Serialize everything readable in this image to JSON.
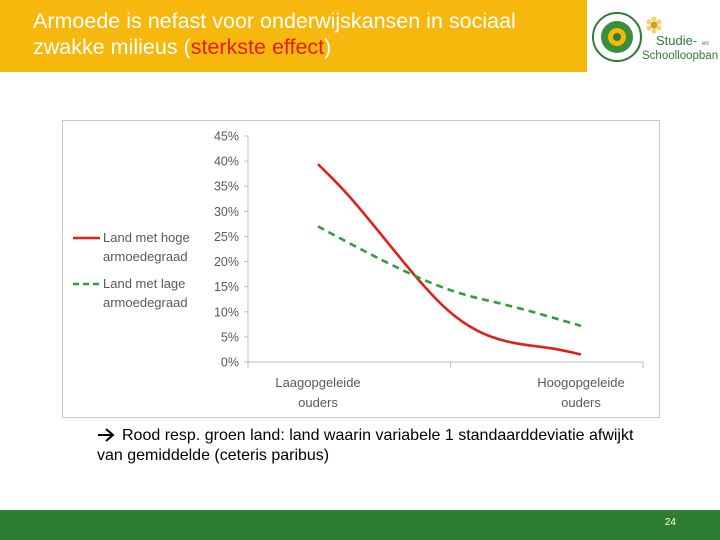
{
  "slide": {
    "title_part1": "Armoede is nefast voor onderwijskansen in sociaal zwakke milieus (",
    "title_highlight": "sterkste effect",
    "title_part2": ")",
    "logo_text_line1": "Studie-",
    "logo_text_small": "en",
    "logo_text_line2": "Schoolloopbanen",
    "note": "Rood resp. groen land: land waarin variabele 1 standaarddeviatie afwijkt van gemiddelde (ceteris paribus)",
    "page_number": "24"
  },
  "colors": {
    "title_bar": "#f6b80c",
    "footer": "#2e7d32",
    "red_series": "#e0201b",
    "green_series": "#2e9e3e",
    "highlight": "#e0201b"
  },
  "chart_data": {
    "type": "line",
    "categories": [
      "Laagopgeleide ouders",
      "Hoogopgeleide ouders"
    ],
    "category_lines": [
      [
        "Laagopgeleide",
        "ouders"
      ],
      [
        "Hoogopgeleide",
        "ouders"
      ]
    ],
    "ylim": [
      0,
      45
    ],
    "yticks": [
      "0%",
      "5%",
      "10%",
      "15%",
      "20%",
      "25%",
      "30%",
      "35%",
      "40%",
      "45%"
    ],
    "legend_position": "left",
    "grid": false,
    "series": [
      {
        "name": "Land met hoge armoedegraad",
        "legend_lines": [
          "Land met hoge",
          "armoedegraad"
        ],
        "style": "solid",
        "color": "#e0201b",
        "points": [
          {
            "x": 0.0,
            "y": 39.4
          },
          {
            "x": 0.1,
            "y": 34.2
          },
          {
            "x": 0.2,
            "y": 28.0
          },
          {
            "x": 0.3,
            "y": 21.5
          },
          {
            "x": 0.4,
            "y": 15.2
          },
          {
            "x": 0.5,
            "y": 9.8
          },
          {
            "x": 0.6,
            "y": 6.2
          },
          {
            "x": 0.7,
            "y": 4.2
          },
          {
            "x": 0.8,
            "y": 3.3
          },
          {
            "x": 0.9,
            "y": 2.7
          },
          {
            "x": 1.0,
            "y": 1.5
          }
        ]
      },
      {
        "name": "Land met lage armoedegraad",
        "legend_lines": [
          "Land met lage",
          "armoedegraad"
        ],
        "style": "dashed",
        "color": "#2e9e3e",
        "points": [
          {
            "x": 0.0,
            "y": 27.0
          },
          {
            "x": 0.25,
            "y": 20.0
          },
          {
            "x": 0.5,
            "y": 14.0
          },
          {
            "x": 0.75,
            "y": 11.0
          },
          {
            "x": 1.0,
            "y": 7.2
          }
        ]
      }
    ]
  }
}
